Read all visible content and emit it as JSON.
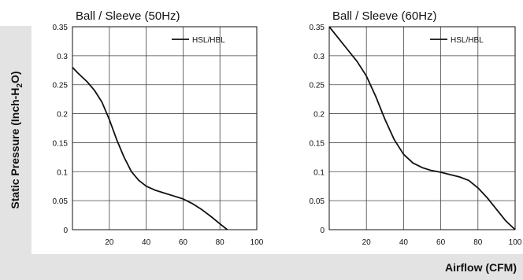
{
  "y_axis_label": {
    "main": "Static Pressure (Inch-H",
    "sub": "2",
    "tail": "O)"
  },
  "x_axis_label": "Airflow (CFM)",
  "colors": {
    "band": "#e3e3e3",
    "line": "#111111",
    "grid": "#444444"
  },
  "chart_data": [
    {
      "type": "line",
      "title": "Ball / Sleeve (50Hz)",
      "xlim": [
        0,
        100
      ],
      "ylim": [
        0,
        0.35
      ],
      "x_ticks": [
        20,
        40,
        60,
        80,
        100
      ],
      "y_ticks": [
        0,
        0.05,
        0.1,
        0.15,
        0.2,
        0.25,
        0.3,
        0.35
      ],
      "x_tick_labels": [
        "20",
        "40",
        "60",
        "80",
        "100"
      ],
      "y_tick_labels": [
        "0",
        "0.05",
        "0.1",
        "0.15",
        "0.2",
        "0.25",
        "0.3",
        "0.35"
      ],
      "grid": true,
      "legend_position": "top-right",
      "series": [
        {
          "name": "HSL/HBL",
          "x": [
            0,
            3,
            8,
            12,
            16,
            20,
            24,
            28,
            32,
            36,
            40,
            45,
            50,
            55,
            60,
            65,
            70,
            75,
            80,
            84
          ],
          "y": [
            0.28,
            0.27,
            0.255,
            0.24,
            0.22,
            0.19,
            0.155,
            0.125,
            0.1,
            0.085,
            0.075,
            0.068,
            0.063,
            0.058,
            0.053,
            0.045,
            0.035,
            0.023,
            0.01,
            0.0
          ]
        }
      ]
    },
    {
      "type": "line",
      "title": "Ball / Sleeve (60Hz)",
      "xlim": [
        0,
        100
      ],
      "ylim": [
        0,
        0.35
      ],
      "x_ticks": [
        20,
        40,
        60,
        80,
        100
      ],
      "y_ticks": [
        0,
        0.05,
        0.1,
        0.15,
        0.2,
        0.25,
        0.3,
        0.35
      ],
      "x_tick_labels": [
        "20",
        "40",
        "60",
        "80",
        "100"
      ],
      "y_tick_labels": [
        "0",
        "0.05",
        "0.1",
        "0.15",
        "0.2",
        "0.25",
        "0.3",
        "0.35"
      ],
      "grid": true,
      "legend_position": "top-right",
      "series": [
        {
          "name": "HSL/HBL",
          "x": [
            0,
            5,
            10,
            15,
            20,
            25,
            30,
            35,
            40,
            45,
            50,
            55,
            60,
            65,
            70,
            75,
            80,
            85,
            90,
            95,
            100
          ],
          "y": [
            0.35,
            0.33,
            0.31,
            0.29,
            0.265,
            0.23,
            0.19,
            0.155,
            0.13,
            0.115,
            0.107,
            0.102,
            0.099,
            0.095,
            0.091,
            0.085,
            0.072,
            0.055,
            0.035,
            0.015,
            0.0
          ]
        }
      ]
    }
  ]
}
